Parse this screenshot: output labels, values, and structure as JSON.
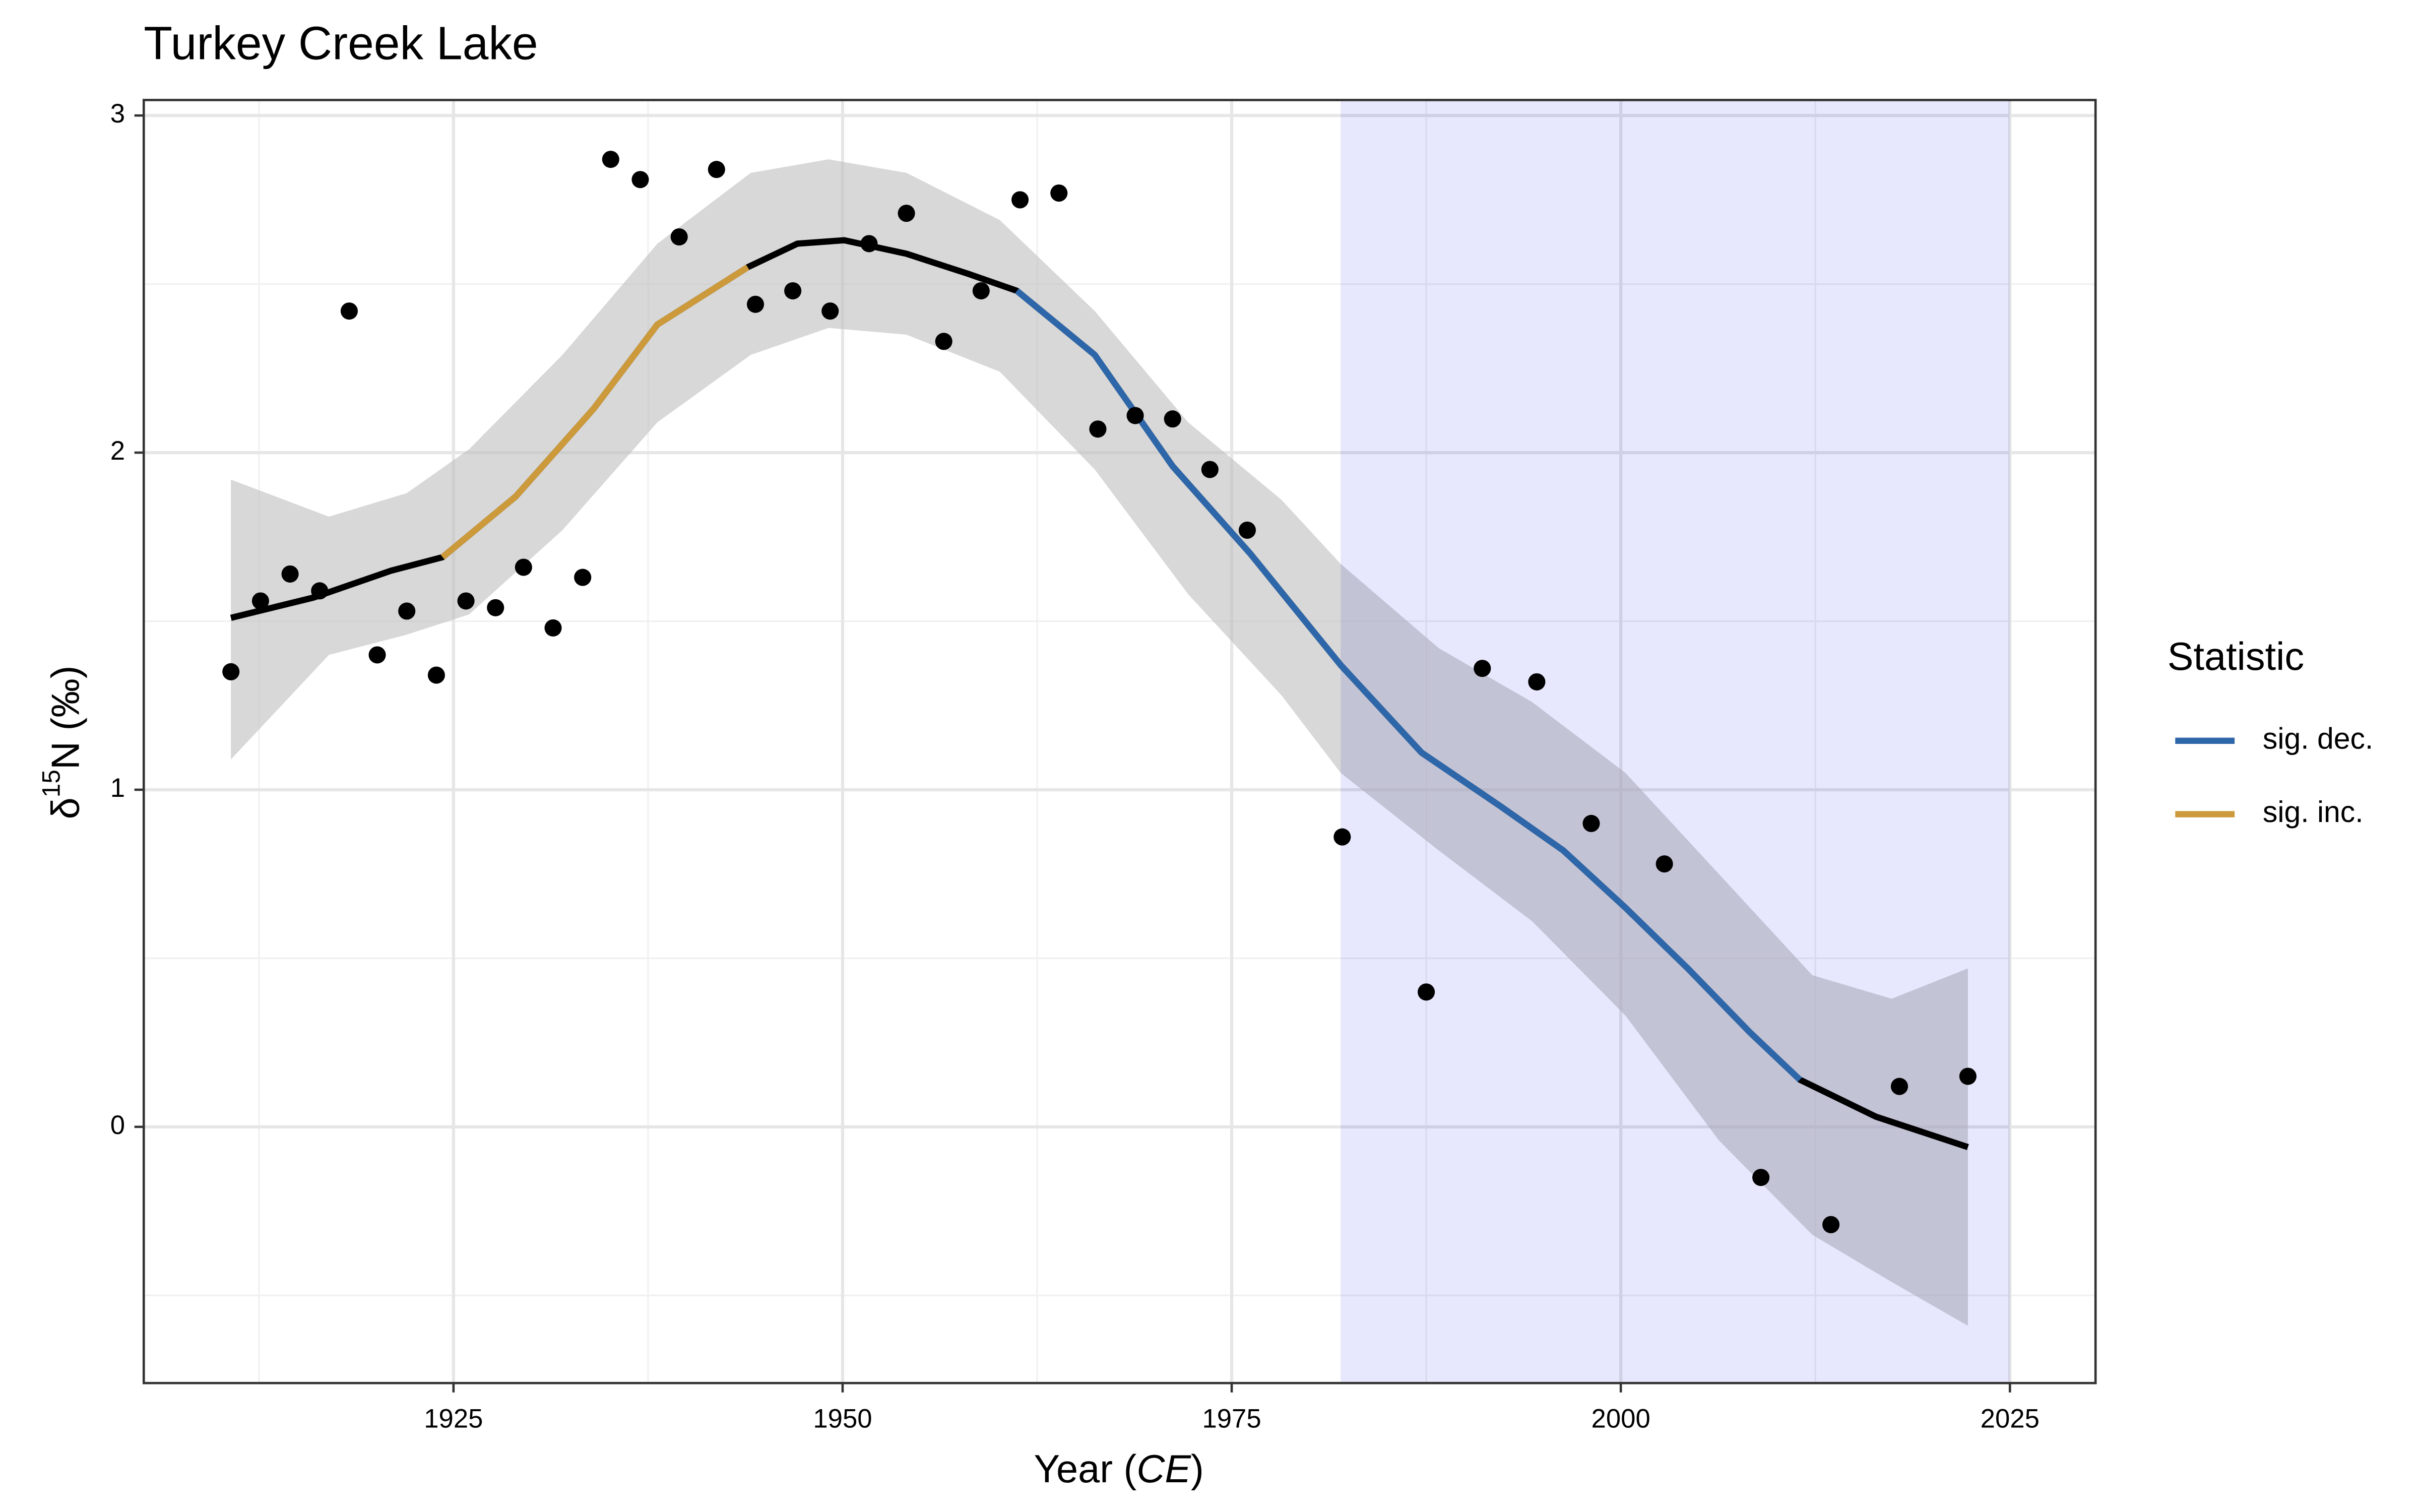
{
  "chart_data": {
    "type": "scatter",
    "title": "Turkey Creek Lake",
    "x_label": {
      "text": "Year (",
      "italic": "CE",
      "suffix": ")"
    },
    "y_label": {
      "prefix": "δ",
      "superscript": "15",
      "suffix": "N (‰)"
    },
    "legend_title": "Statistic",
    "xlim": [
      1905.1,
      2030.5
    ],
    "ylim": [
      -0.76,
      3.046
    ],
    "xticks": [
      1925,
      1950,
      1975,
      2000,
      2025
    ],
    "yticks": [
      0,
      1,
      2,
      3
    ],
    "xminorticks": [
      1912.5,
      1937.5,
      1962.5,
      1987.5,
      2012.5
    ],
    "yminorticks": [
      -0.5,
      0.5,
      1.5,
      2.5
    ],
    "grid": true,
    "highlight": {
      "x": [
        1982.0,
        2025.0
      ],
      "color": "#e3e3fd"
    },
    "points": {
      "color": "#000000",
      "x": [
        1910.7,
        1912.6,
        1914.5,
        1916.4,
        1918.3,
        1920.1,
        1922.0,
        1923.9,
        1925.8,
        1927.7,
        1929.5,
        1931.4,
        1933.3,
        1935.1,
        1937.0,
        1939.5,
        1941.9,
        1944.4,
        1946.8,
        1949.2,
        1951.7,
        1954.1,
        1956.5,
        1958.9,
        1961.4,
        1963.9,
        1966.4,
        1968.8,
        1971.2,
        1973.6,
        1976.0,
        1982.1,
        1987.5,
        1991.1,
        1994.6,
        1998.1,
        2002.8,
        2009.0,
        2013.5,
        2017.9,
        2022.3
      ],
      "values": [
        1.35,
        1.56,
        1.64,
        1.59,
        2.42,
        1.4,
        1.53,
        1.34,
        1.56,
        1.54,
        1.66,
        1.48,
        1.63,
        2.87,
        2.81,
        2.64,
        2.84,
        2.44,
        2.48,
        2.42,
        2.62,
        2.71,
        2.33,
        2.48,
        2.75,
        2.77,
        2.07,
        2.11,
        2.1,
        1.95,
        1.77,
        0.86,
        0.4,
        1.36,
        1.32,
        0.9,
        0.78,
        -0.15,
        -0.29,
        0.12,
        0.15
      ]
    },
    "ribbon": {
      "color": "#bebebe",
      "x": [
        1910.7,
        1917.0,
        1922.0,
        1926.0,
        1932.0,
        1938.1,
        1944.1,
        1949.1,
        1954.1,
        1960.1,
        1966.2,
        1972.2,
        1978.2,
        1982.0,
        1988.3,
        1994.3,
        2000.3,
        2006.3,
        2012.3,
        2017.4,
        2022.3
      ],
      "upper": [
        1.92,
        1.81,
        1.88,
        2.01,
        2.29,
        2.62,
        2.83,
        2.87,
        2.83,
        2.69,
        2.42,
        2.09,
        1.86,
        1.67,
        1.42,
        1.26,
        1.05,
        0.75,
        0.45,
        0.38,
        0.47
      ],
      "lower": [
        1.09,
        1.4,
        1.46,
        1.52,
        1.77,
        2.09,
        2.29,
        2.37,
        2.35,
        2.24,
        1.95,
        1.58,
        1.28,
        1.05,
        0.82,
        0.61,
        0.33,
        -0.04,
        -0.32,
        -0.46,
        -0.59
      ]
    },
    "fit": {
      "color": "#000000",
      "x": [
        1910.7,
        1916.0,
        1921.0,
        1924.3,
        1929.0,
        1934.0,
        1938.1,
        1943.9,
        1947.1,
        1950.1,
        1954.1,
        1958.1,
        1961.2,
        1966.2,
        1971.2,
        1976.2,
        1982.0,
        1987.2,
        1992.3,
        1996.3,
        2000.3,
        2004.3,
        2008.3,
        2011.5,
        2016.4,
        2022.3
      ],
      "values": [
        1.51,
        1.57,
        1.65,
        1.69,
        1.87,
        2.13,
        2.38,
        2.55,
        2.62,
        2.63,
        2.59,
        2.53,
        2.48,
        2.29,
        1.96,
        1.7,
        1.37,
        1.11,
        0.95,
        0.82,
        0.65,
        0.47,
        0.28,
        0.14,
        0.03,
        -0.06
      ]
    },
    "series": [
      {
        "name": "sig. dec.",
        "color": "#2e67a9",
        "x": [
          1961.2,
          1966.2,
          1971.2,
          1976.2,
          1982.0,
          1987.2,
          1992.3,
          1996.3,
          2000.3,
          2004.3,
          2008.3,
          2011.5
        ],
        "values": [
          2.48,
          2.29,
          1.96,
          1.7,
          1.37,
          1.11,
          0.95,
          0.82,
          0.65,
          0.47,
          0.28,
          0.14
        ]
      },
      {
        "name": "sig. inc.",
        "color": "#cc9a3a",
        "x": [
          1924.3,
          1929.0,
          1934.0,
          1938.1,
          1943.9
        ],
        "values": [
          1.69,
          1.87,
          2.13,
          2.38,
          2.55
        ]
      }
    ]
  }
}
